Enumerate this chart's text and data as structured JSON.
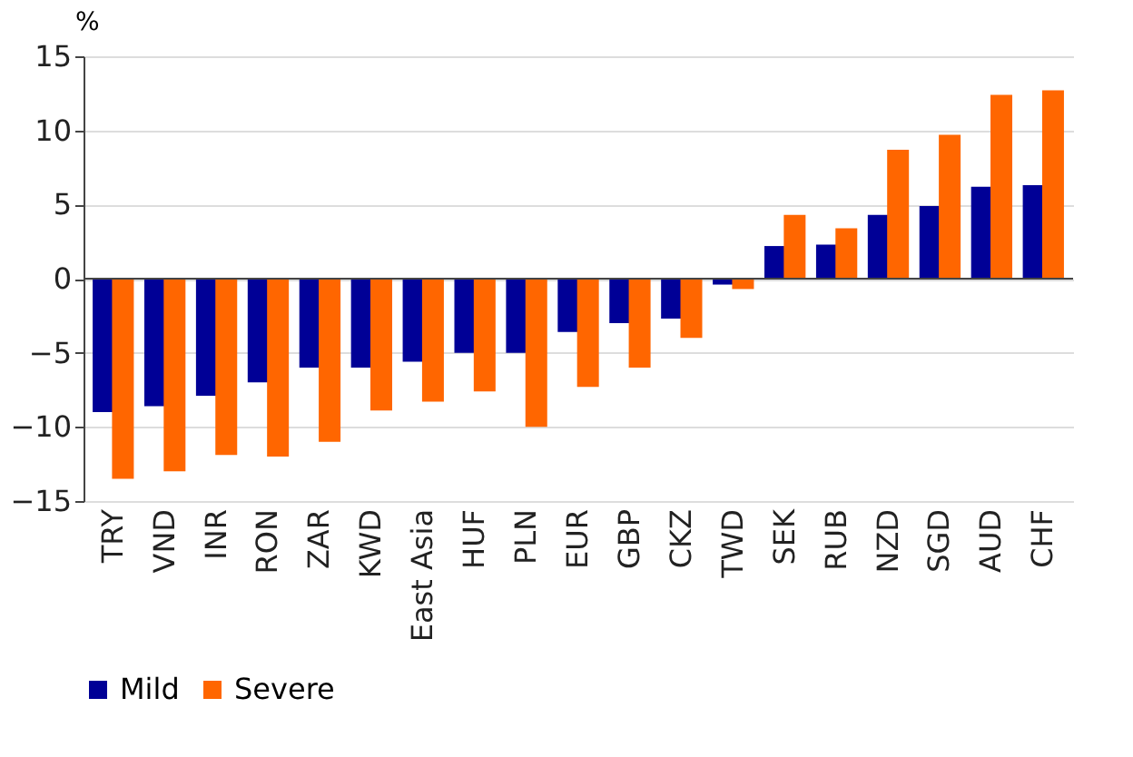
{
  "chart_data": {
    "type": "bar",
    "ylabel": "%",
    "categories": [
      "TRY",
      "VND",
      "INR",
      "RON",
      "ZAR",
      "KWD",
      "East Asia",
      "HUF",
      "PLN",
      "EUR",
      "GBP",
      "CKZ",
      "TWD",
      "SEK",
      "RUB",
      "NZD",
      "SGD",
      "AUD",
      "CHF"
    ],
    "series": [
      {
        "name": "Mild",
        "color": "#000096",
        "values": [
          -9,
          -8.6,
          -7.9,
          -7,
          -6,
          -6,
          -5.6,
          -5,
          -5,
          -3.6,
          -3,
          -2.7,
          -0.4,
          2.2,
          2.3,
          4.3,
          4.9,
          6.2,
          6.3
        ]
      },
      {
        "name": "Severe",
        "color": "#ff6600",
        "values": [
          -13.5,
          -13,
          -11.9,
          -12,
          -11,
          -8.9,
          -8.3,
          -7.6,
          -10,
          -7.3,
          -6,
          -4,
          -0.7,
          4.3,
          3.4,
          8.7,
          9.7,
          12.4,
          12.7
        ]
      }
    ],
    "ylim": [
      -15,
      15
    ],
    "yticks": [
      -15,
      -10,
      -5,
      0,
      5,
      10,
      15
    ],
    "grid": "y",
    "legend": "bottom"
  }
}
